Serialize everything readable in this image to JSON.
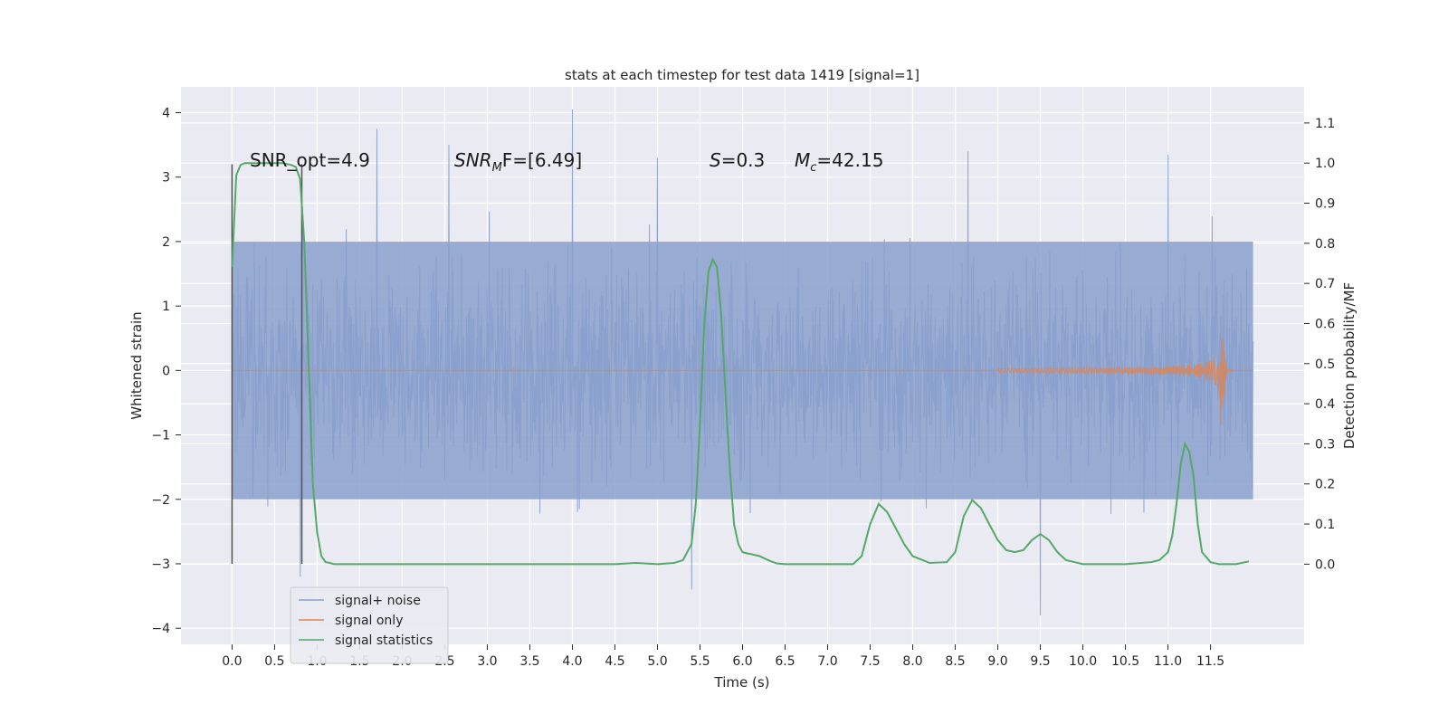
{
  "chart_data": {
    "type": "line",
    "title": "stats at each timestep for test data 1419 [signal=1]",
    "xlabel": "Time (s)",
    "ylabel": "Whitened strain",
    "ylabel_right": "Detection probability/MF",
    "xlim": [
      -0.6,
      12.6
    ],
    "ylim": [
      -4.25,
      4.4
    ],
    "ylim_right": [
      -0.2,
      1.19
    ],
    "x_ticks": [
      "0.0",
      "0.5",
      "1.0",
      "1.5",
      "2.0",
      "2.5",
      "3.0",
      "3.5",
      "4.0",
      "4.5",
      "5.0",
      "5.5",
      "6.0",
      "6.5",
      "7.0",
      "7.5",
      "8.0",
      "8.5",
      "9.0",
      "9.5",
      "10.0",
      "10.5",
      "11.0",
      "11.5"
    ],
    "y_ticks": [
      "4",
      "3",
      "2",
      "1",
      "0",
      "−1",
      "−2",
      "−3",
      "−4"
    ],
    "y_ticks_right": [
      "1.1",
      "1.0",
      "0.9",
      "0.8",
      "0.7",
      "0.6",
      "0.5",
      "0.4",
      "0.3",
      "0.2",
      "0.1",
      "0.0"
    ],
    "grid": true,
    "legend_position": "lower-left",
    "annotations": {
      "snr_opt": "SNR_opt=4.9",
      "snr_mf_base": "SNR",
      "snr_mf_sub": "M",
      "snr_mf_rest": "F=[6.49]",
      "s_italic": "S",
      "s_rest": "=0.3",
      "mc_base": "M",
      "mc_sub": "c",
      "mc_rest": "=42.15"
    },
    "series": [
      {
        "name": "signal+ noise",
        "color": "#8aa0cc",
        "x_range": [
          0.0,
          12.0
        ],
        "envelope_lower": -2.0,
        "envelope_upper": 2.0,
        "peaks": [
          [
            1.7,
            3.75
          ],
          [
            2.55,
            3.5
          ],
          [
            4.0,
            4.05
          ],
          [
            5.0,
            3.3
          ],
          [
            8.65,
            3.4
          ],
          [
            11.0,
            3.35
          ],
          [
            9.5,
            -3.8
          ],
          [
            5.4,
            -3.4
          ],
          [
            0.8,
            -3.2
          ]
        ]
      },
      {
        "name": "signal only",
        "color": "#dd8452",
        "x_range": [
          0.0,
          12.0
        ],
        "chirp_peak_x": 11.63,
        "chirp_peak_amplitude": 1.2
      },
      {
        "name": "signal statistics",
        "color": "#55a868",
        "x": [
          0.0,
          0.05,
          0.1,
          0.15,
          0.2,
          0.3,
          0.4,
          0.5,
          0.6,
          0.7,
          0.75,
          0.8,
          0.85,
          0.9,
          0.95,
          1.0,
          1.05,
          1.1,
          1.15,
          1.2,
          1.5,
          2.0,
          2.5,
          3.0,
          3.5,
          4.0,
          4.5,
          4.75,
          5.0,
          5.2,
          5.3,
          5.4,
          5.45,
          5.5,
          5.55,
          5.6,
          5.65,
          5.7,
          5.75,
          5.8,
          5.85,
          5.9,
          5.95,
          6.0,
          6.05,
          6.1,
          6.2,
          6.3,
          6.4,
          6.5,
          7.0,
          7.3,
          7.4,
          7.5,
          7.6,
          7.7,
          7.8,
          7.9,
          8.0,
          8.2,
          8.4,
          8.5,
          8.6,
          8.7,
          8.8,
          8.9,
          9.0,
          9.1,
          9.2,
          9.3,
          9.4,
          9.5,
          9.6,
          9.7,
          9.8,
          10.0,
          10.5,
          10.8,
          10.9,
          11.0,
          11.05,
          11.1,
          11.15,
          11.2,
          11.25,
          11.3,
          11.35,
          11.4,
          11.5,
          11.6,
          11.8,
          11.95
        ],
        "y": [
          0.74,
          0.97,
          0.995,
          1.0,
          1.0,
          1.0,
          1.0,
          1.0,
          1.0,
          0.995,
          0.99,
          0.96,
          0.8,
          0.5,
          0.2,
          0.08,
          0.02,
          0.005,
          0.003,
          0.0,
          0.0,
          0.0,
          0.0,
          0.0,
          0.0,
          0.0,
          0.0,
          0.003,
          0.0,
          0.003,
          0.01,
          0.05,
          0.15,
          0.35,
          0.6,
          0.73,
          0.76,
          0.74,
          0.62,
          0.42,
          0.24,
          0.1,
          0.05,
          0.03,
          0.027,
          0.025,
          0.02,
          0.01,
          0.002,
          0.0,
          0.0,
          0.0,
          0.02,
          0.1,
          0.15,
          0.13,
          0.09,
          0.05,
          0.02,
          0.003,
          0.005,
          0.03,
          0.12,
          0.16,
          0.14,
          0.1,
          0.06,
          0.035,
          0.03,
          0.035,
          0.06,
          0.075,
          0.06,
          0.03,
          0.01,
          0.0,
          0.0,
          0.005,
          0.01,
          0.03,
          0.07,
          0.15,
          0.25,
          0.3,
          0.28,
          0.22,
          0.1,
          0.03,
          0.005,
          0.0,
          0.0,
          0.007
        ]
      }
    ],
    "vertical_markers": [
      {
        "x": 0.0,
        "y_from": -3.0,
        "y_to": 3.2,
        "color": "#555555"
      },
      {
        "x": 0.82,
        "y_from": -3.0,
        "y_to": 3.2,
        "color": "#555555"
      }
    ]
  }
}
